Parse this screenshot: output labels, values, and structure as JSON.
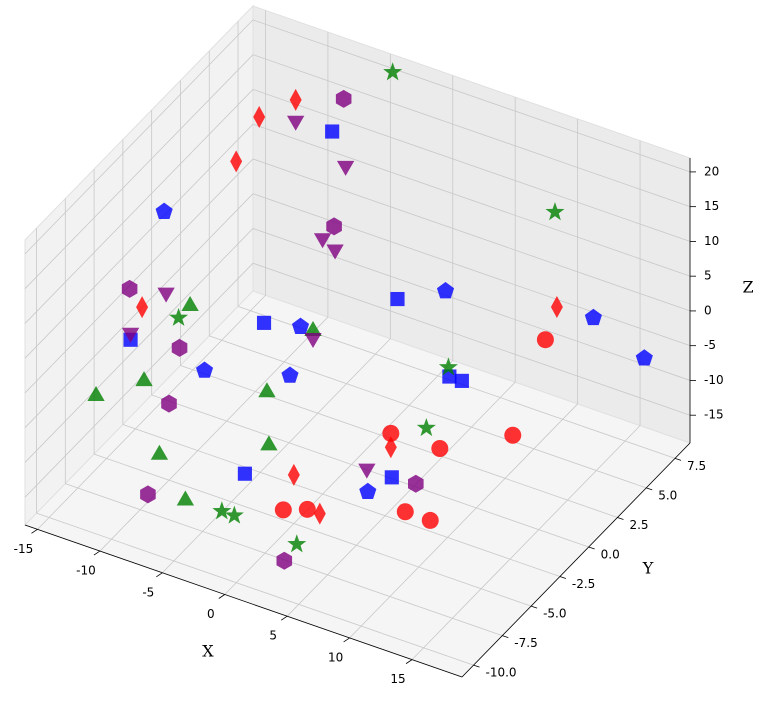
{
  "chart_data": {
    "type": "scatter3d",
    "xlabel": "X",
    "ylabel": "Y",
    "zlabel": "Z",
    "xlim": [
      -16,
      19
    ],
    "ylim": [
      -11,
      8.8
    ],
    "zlim": [
      -19,
      22
    ],
    "xticks": [
      -15,
      -10,
      -5,
      0,
      5,
      10,
      15
    ],
    "yticks": [
      {
        "value": -10,
        "label": "-10.0"
      },
      {
        "value": -7.5,
        "label": "-7.5"
      },
      {
        "value": -5,
        "label": "-5.0"
      },
      {
        "value": -2.5,
        "label": "-2.5"
      },
      {
        "value": 0,
        "label": "0.0"
      },
      {
        "value": 2.5,
        "label": "2.5"
      },
      {
        "value": 5,
        "label": "5.0"
      },
      {
        "value": 7.5,
        "label": "7.5"
      }
    ],
    "zticks": [
      -15,
      -10,
      -5,
      0,
      5,
      10,
      15,
      20
    ],
    "grid": true,
    "series": [
      {
        "color": "#ff0000",
        "marker": "circle",
        "x": [
          10,
          5,
          8,
          12,
          10,
          8,
          2,
          1
        ],
        "y": [
          6,
          -2,
          -1,
          1,
          -4,
          -4,
          -6,
          -7
        ],
        "z": [
          -5,
          -8,
          -10,
          -9,
          -14,
          -14,
          -14,
          -13
        ]
      },
      {
        "color": "#ff0000",
        "marker": "diamond",
        "x": [
          -12,
          -10,
          -12,
          -14,
          10,
          5,
          0,
          3
        ],
        "y": [
          5,
          6,
          3,
          -3,
          7,
          -2,
          -5,
          -6
        ],
        "z": [
          15,
          17,
          12,
          0,
          -2,
          -10,
          -12,
          -14
        ]
      },
      {
        "color": "#0000ff",
        "marker": "square",
        "x": [
          -8,
          -14,
          -7,
          0,
          -3,
          6,
          7,
          6
        ],
        "y": [
          7,
          -4,
          0,
          4,
          -6,
          2,
          2,
          -3
        ],
        "z": [
          12,
          -3,
          -3,
          -2,
          -12,
          -6,
          -6,
          -12
        ]
      },
      {
        "color": "#0000ff",
        "marker": "pentagon",
        "x": [
          -15,
          -9,
          -5,
          -4,
          2,
          12,
          17,
          5
        ],
        "y": [
          0,
          -3,
          1,
          -1,
          6,
          8,
          7,
          -4
        ],
        "z": [
          8,
          -6,
          -4,
          -7,
          -3,
          -4,
          -5,
          -13
        ]
      },
      {
        "color": "#008000",
        "marker": "triangle-up",
        "x": [
          -14,
          -12,
          -8,
          -5,
          -4,
          -2,
          -4,
          -12
        ],
        "y": [
          -7,
          -5,
          -8,
          -9,
          -3,
          -5,
          1,
          -1
        ],
        "z": [
          -6,
          -6,
          -9,
          -12,
          -6,
          -9,
          -4,
          -2
        ]
      },
      {
        "color": "#008000",
        "marker": "star",
        "x": [
          -5,
          8,
          -12,
          -3,
          -2,
          3,
          5,
          6
        ],
        "y": [
          9,
          9,
          -2,
          -8,
          -8,
          -8,
          3,
          0
        ],
        "z": [
          19,
          7,
          -2,
          -14,
          -14,
          -15,
          -7,
          -10
        ]
      },
      {
        "color": "#800080",
        "marker": "hexagon",
        "x": [
          -8,
          -15,
          -11,
          -10,
          -6,
          -8,
          2,
          7
        ],
        "y": [
          8,
          -3,
          -3,
          -5,
          5,
          -9,
          -8,
          -2
        ],
        "z": [
          15,
          2,
          -4,
          -8,
          3,
          -13,
          -18,
          -14
        ]
      },
      {
        "color": "#800080",
        "marker": "triangle-down",
        "x": [
          -10,
          -13,
          -14,
          -6,
          -6,
          -5,
          -4,
          4
        ],
        "y": [
          6,
          -2,
          -4,
          6,
          4,
          4,
          1,
          -3
        ],
        "z": [
          14,
          1,
          -2,
          10,
          3,
          2,
          -5,
          -12
        ]
      }
    ]
  }
}
